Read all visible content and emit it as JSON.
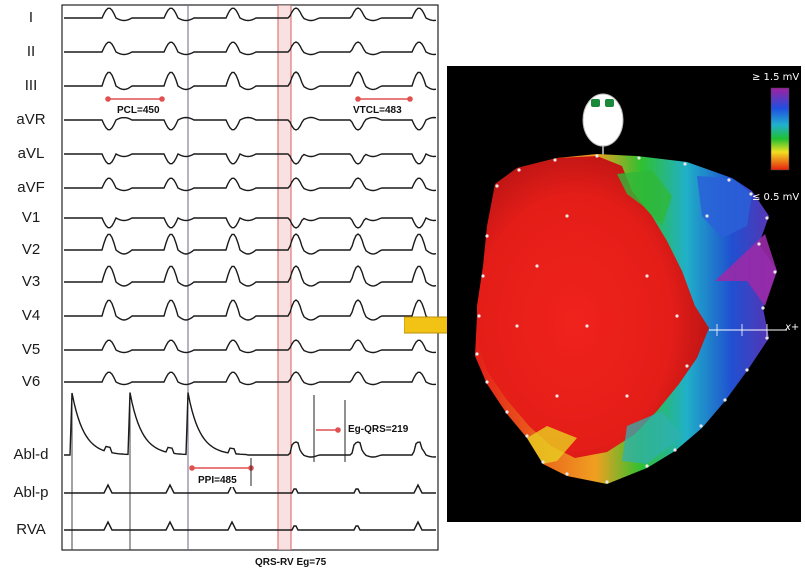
{
  "ecg": {
    "leads": [
      "I",
      "II",
      "III",
      "aVR",
      "aVL",
      "aVF",
      "V1",
      "V2",
      "V3",
      "V4",
      "V5",
      "V6",
      "Abl-d",
      "Abl-p",
      "RVA"
    ],
    "pcl_label": "PCL=450",
    "vtcl_label": "VTCL=483",
    "ppi_label": "PPI=485",
    "eg_qrs_label": "Eg-QRS=219",
    "footer_label": "QRS-RV Eg=75"
  },
  "map": {
    "scale_max": "≥ 1.5 mV",
    "scale_min": "≤ 0.5 mV",
    "axis_label": "x+"
  },
  "colors": {
    "arrow": "#f2c315",
    "scar": "#e8201c",
    "marker": "#e05050"
  }
}
